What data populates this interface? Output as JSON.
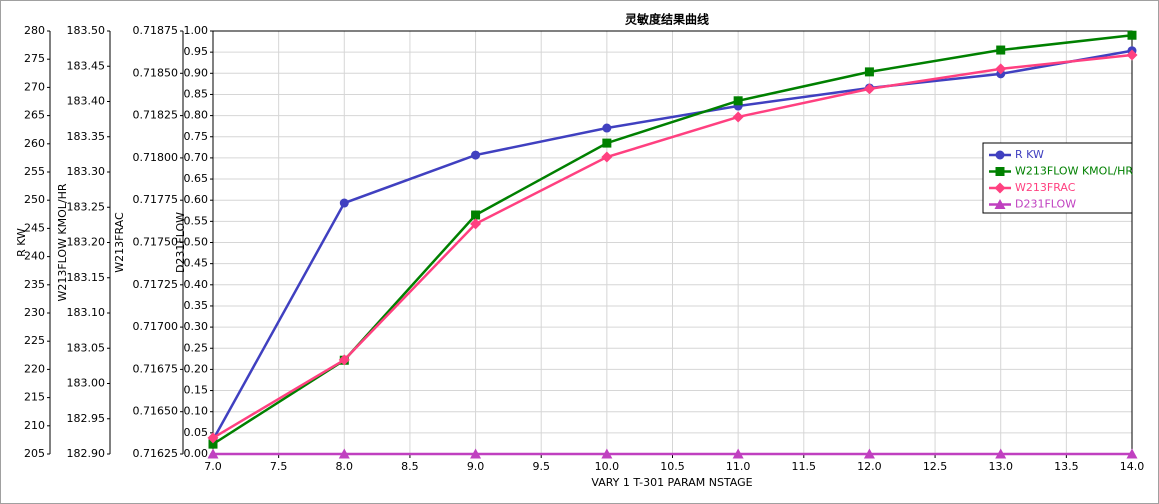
{
  "chart_data": {
    "type": "line",
    "title": "灵敏度结果曲线",
    "x_label": "VARY   1 T-301 PARAM NSTAGE",
    "x": [
      7,
      8,
      9,
      10,
      11,
      12,
      13,
      14
    ],
    "xlim": [
      7,
      14
    ],
    "xticks": [
      {
        "value": 7,
        "label": "7.0"
      },
      7.5,
      {
        "value": 8,
        "label": "8.0"
      },
      8.5,
      {
        "value": 9,
        "label": "9.0"
      },
      9.5,
      {
        "value": 10,
        "label": "10.0"
      },
      10.5,
      {
        "value": 11,
        "label": "11.0"
      },
      11.5,
      {
        "value": 12,
        "label": "12.0"
      },
      12.5,
      {
        "value": 13,
        "label": "13.0"
      },
      13.5,
      {
        "value": 14,
        "label": "14.0"
      }
    ],
    "grid": true,
    "y_axes": [
      {
        "label": "R KW",
        "ylim": [
          205,
          280
        ],
        "yticks": [
          205,
          210,
          215,
          220,
          225,
          230,
          235,
          240,
          245,
          250,
          255,
          260,
          265,
          270,
          275,
          280
        ]
      },
      {
        "label": "W213FLOW KMOL/HR",
        "ylim": [
          182.9,
          183.5
        ],
        "yticks": [
          {
            "value": 182.9,
            "label": "182.90"
          },
          182.95,
          {
            "value": 183,
            "label": "183.00"
          },
          183.05,
          {
            "value": 183.1,
            "label": "183.10"
          },
          183.15,
          {
            "value": 183.2,
            "label": "183.20"
          },
          183.25,
          {
            "value": 183.3,
            "label": "183.30"
          },
          183.35,
          {
            "value": 183.4,
            "label": "183.40"
          },
          183.45,
          {
            "value": 183.5,
            "label": "183.50"
          }
        ]
      },
      {
        "label": "W213FRAC",
        "ylim": [
          0.71625,
          0.71875
        ],
        "yticks": [
          0.71625,
          {
            "value": 0.7165,
            "label": "0.71650"
          },
          0.71675,
          {
            "value": 0.717,
            "label": "0.71700"
          },
          0.71725,
          {
            "value": 0.7175,
            "label": "0.71750"
          },
          0.71775,
          {
            "value": 0.718,
            "label": "0.71800"
          },
          0.71825,
          {
            "value": 0.7185,
            "label": "0.71850"
          },
          0.71875
        ]
      },
      {
        "label": "D231FLOW",
        "ylim": [
          0,
          1
        ],
        "yticks": [
          {
            "value": 0,
            "label": "0.00"
          },
          0.05,
          {
            "value": 0.1,
            "label": "0.10"
          },
          0.15,
          {
            "value": 0.2,
            "label": "0.20"
          },
          0.25,
          {
            "value": 0.3,
            "label": "0.30"
          },
          0.35,
          {
            "value": 0.4,
            "label": "0.40"
          },
          0.45,
          {
            "value": 0.5,
            "label": "0.50"
          },
          0.55,
          {
            "value": 0.6,
            "label": "0.60"
          },
          0.65,
          {
            "value": 0.7,
            "label": "0.70"
          },
          0.75,
          {
            "value": 0.8,
            "label": "0.80"
          },
          0.85,
          {
            "value": 0.9,
            "label": "0.90"
          },
          0.95,
          {
            "value": 1,
            "label": "1.00"
          }
        ]
      }
    ],
    "series": [
      {
        "name": "R KW",
        "color": "#4040c0",
        "marker": "circle",
        "axis": 0,
        "values": [
          207.5,
          249.5,
          258.0,
          262.8,
          266.7,
          269.9,
          272.4,
          276.5
        ]
      },
      {
        "name": "W213FLOW KMOL/HR",
        "color": "#008000",
        "marker": "square",
        "axis": 1,
        "values": [
          182.914,
          183.033,
          183.239,
          183.341,
          183.401,
          183.442,
          183.473,
          183.494
        ]
      },
      {
        "name": "W213FRAC",
        "color": "#ff4080",
        "marker": "diamond",
        "axis": 2,
        "values": [
          0.716345,
          0.716806,
          0.71761,
          0.718005,
          0.718242,
          0.718408,
          0.718526,
          0.718608
        ]
      },
      {
        "name": "D231FLOW",
        "color": "#c040c0",
        "marker": "triangle",
        "axis": 3,
        "values": [
          0,
          0,
          0,
          0,
          0,
          0,
          0,
          0
        ]
      }
    ]
  }
}
